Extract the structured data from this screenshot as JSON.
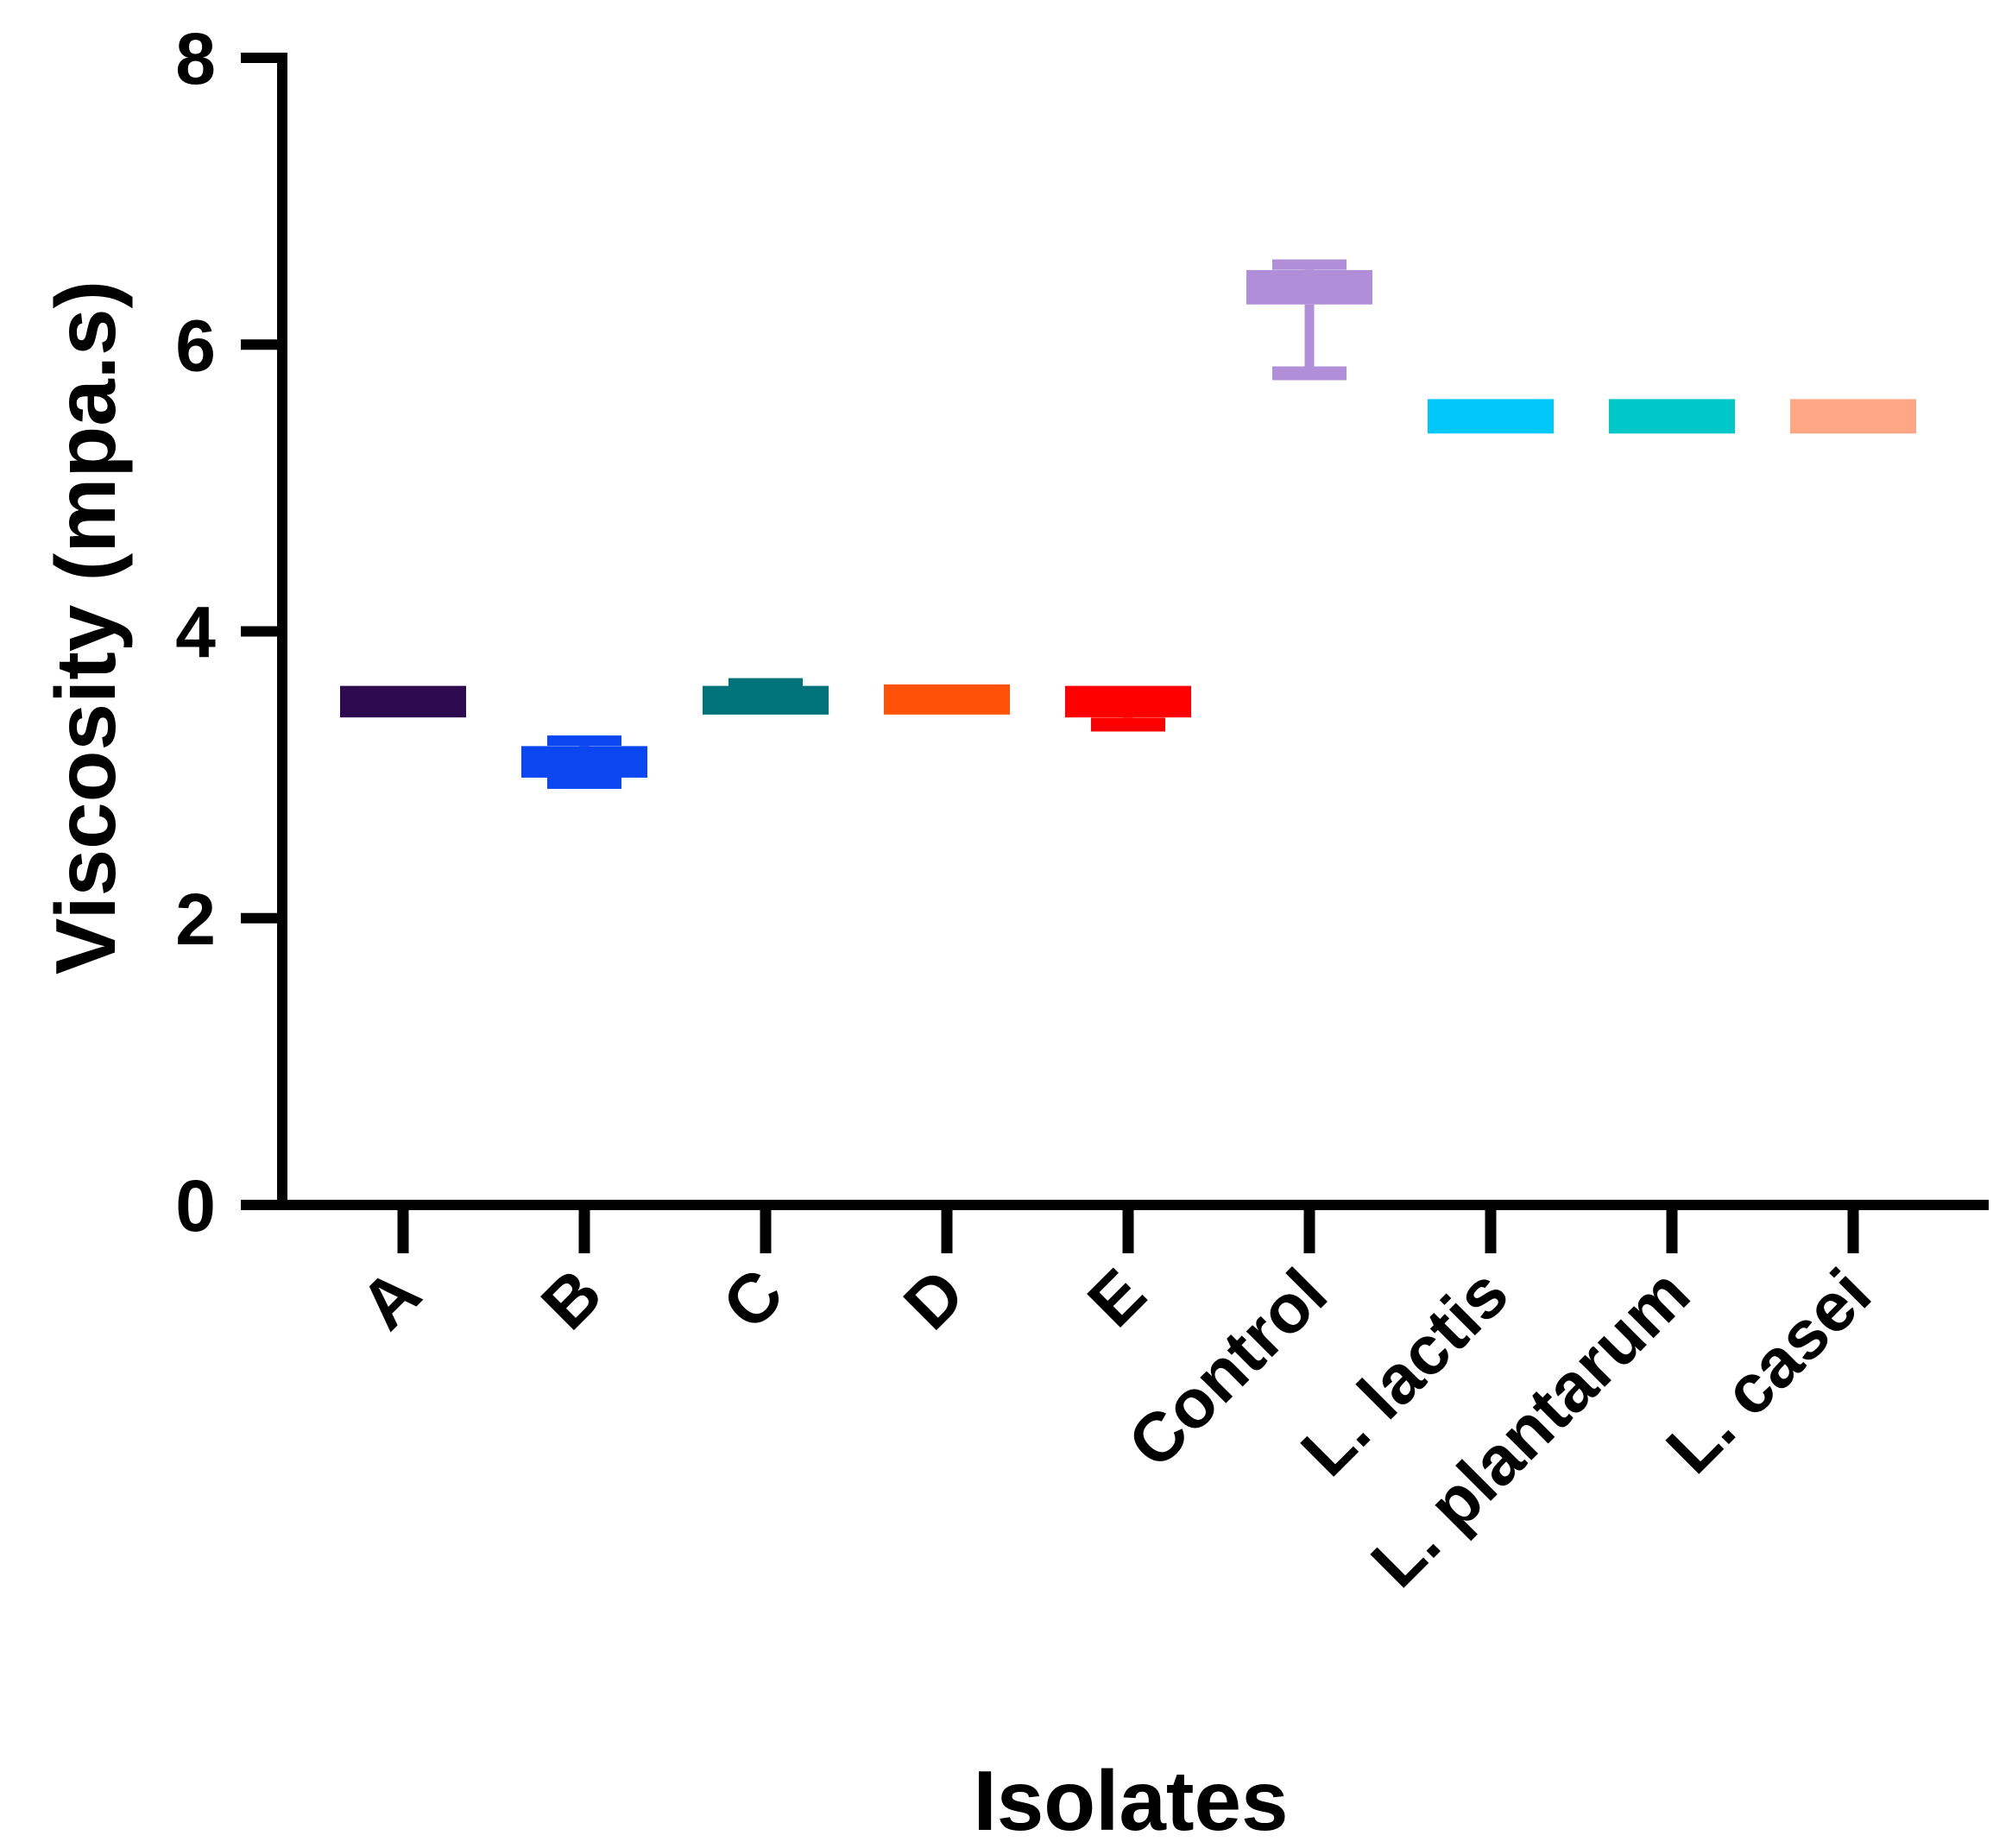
{
  "chart_data": {
    "type": "box",
    "xlabel": "Isolates",
    "ylabel": "Viscosity (mpa.s)",
    "ylim": [
      0,
      8
    ],
    "yticks": [
      "0",
      "2",
      "4",
      "6",
      "8"
    ],
    "grid": false,
    "categories": [
      "A",
      "B",
      "C",
      "D",
      "E",
      "Control",
      "L. lactis",
      "L. plantarum",
      "L. casei"
    ],
    "boxes": [
      {
        "category": "A",
        "min": 3.4,
        "q1": 3.4,
        "median": 3.5,
        "q3": 3.62,
        "max": 3.62,
        "color": "#2E0B4E"
      },
      {
        "category": "B",
        "min": 2.95,
        "q1": 2.98,
        "median": 3.1,
        "q3": 3.2,
        "max": 3.25,
        "color": "#0A47F0"
      },
      {
        "category": "C",
        "min": 3.42,
        "q1": 3.42,
        "median": 3.52,
        "q3": 3.62,
        "max": 3.65,
        "color": "#00727A"
      },
      {
        "category": "D",
        "min": 3.42,
        "q1": 3.42,
        "median": 3.52,
        "q3": 3.63,
        "max": 3.63,
        "color": "#FF5208"
      },
      {
        "category": "E",
        "min": 3.35,
        "q1": 3.4,
        "median": 3.5,
        "q3": 3.62,
        "max": 3.62,
        "color": "#FF0000"
      },
      {
        "category": "Control",
        "min": 5.8,
        "q1": 6.28,
        "median": 6.4,
        "q3": 6.52,
        "max": 6.57,
        "color": "#B18FD8"
      },
      {
        "category": "L. lactis",
        "min": 5.38,
        "q1": 5.38,
        "median": 5.5,
        "q3": 5.62,
        "max": 5.62,
        "color": "#00C8FA"
      },
      {
        "category": "L. plantarum",
        "min": 5.38,
        "q1": 5.38,
        "median": 5.5,
        "q3": 5.62,
        "max": 5.62,
        "color": "#00C8C8"
      },
      {
        "category": "L. casei",
        "min": 5.38,
        "q1": 5.38,
        "median": 5.5,
        "q3": 5.62,
        "max": 5.62,
        "color": "#FFA684"
      }
    ]
  }
}
